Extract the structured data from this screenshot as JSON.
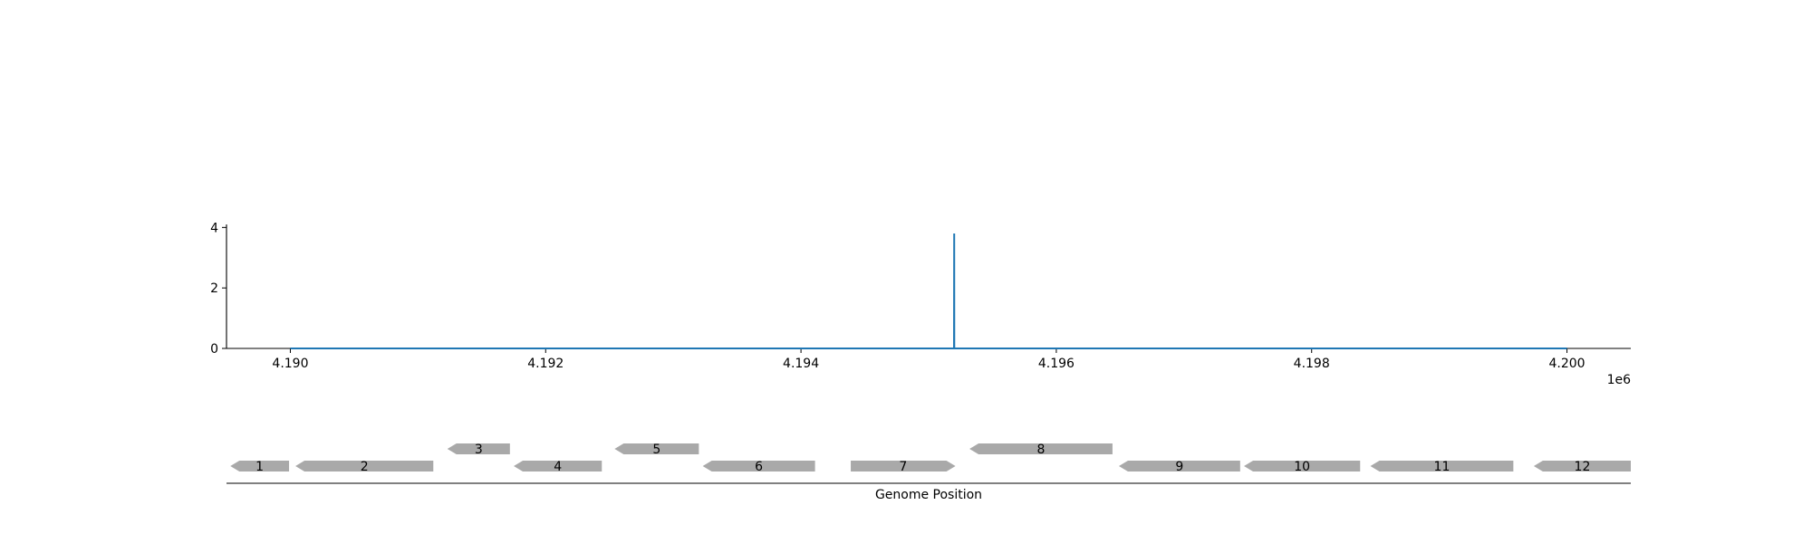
{
  "chart_data": [
    {
      "type": "line",
      "x": [
        4190000,
        4195199,
        4195200,
        4195201,
        4200000
      ],
      "y": [
        0,
        0,
        3.8,
        0,
        0
      ],
      "xlim": [
        4189500,
        4200500
      ],
      "ylim": [
        0,
        4.1
      ],
      "x_ticks": [
        4190000,
        4192000,
        4194000,
        4196000,
        4198000,
        4200000
      ],
      "x_tick_labels": [
        "4.190",
        "4.192",
        "4.194",
        "4.196",
        "4.198",
        "4.200"
      ],
      "y_ticks": [
        0,
        2,
        4
      ],
      "y_tick_labels": [
        "0",
        "2",
        "4"
      ],
      "x_offset_label": "1e6",
      "color": "#1f77b4"
    },
    {
      "type": "gene_track",
      "xlabel": "Genome Position",
      "xlim": [
        4189500,
        4200500
      ],
      "gene_color": "#a9a9a9",
      "genes": [
        {
          "label": "1",
          "start": 4189530,
          "end": 4189990,
          "strand": "-",
          "level": 0
        },
        {
          "label": "2",
          "start": 4190040,
          "end": 4191120,
          "strand": "-",
          "level": 0
        },
        {
          "label": "3",
          "start": 4191230,
          "end": 4191720,
          "strand": "-",
          "level": 1
        },
        {
          "label": "4",
          "start": 4191750,
          "end": 4192440,
          "strand": "-",
          "level": 0
        },
        {
          "label": "5",
          "start": 4192540,
          "end": 4193200,
          "strand": "-",
          "level": 1
        },
        {
          "label": "6",
          "start": 4193230,
          "end": 4194110,
          "strand": "-",
          "level": 0
        },
        {
          "label": "7",
          "start": 4194390,
          "end": 4195210,
          "strand": "+",
          "level": 0
        },
        {
          "label": "8",
          "start": 4195320,
          "end": 4196440,
          "strand": "-",
          "level": 1
        },
        {
          "label": "9",
          "start": 4196490,
          "end": 4197440,
          "strand": "-",
          "level": 0
        },
        {
          "label": "10",
          "start": 4197470,
          "end": 4198380,
          "strand": "-",
          "level": 0
        },
        {
          "label": "11",
          "start": 4198460,
          "end": 4199580,
          "strand": "-",
          "level": 0
        },
        {
          "label": "12",
          "start": 4199740,
          "end": 4200500,
          "strand": "-",
          "level": 0
        }
      ]
    }
  ]
}
